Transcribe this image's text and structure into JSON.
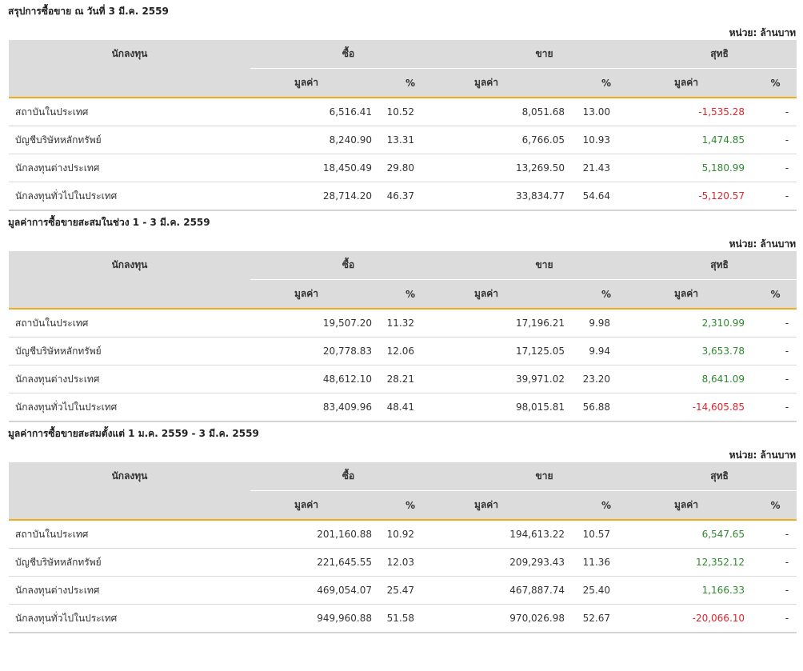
{
  "unit_label": "หน่วย: ล้านบาท",
  "headers": {
    "investor": "นักลงทุน",
    "buy": "ซื้อ",
    "sell": "ขาย",
    "net": "สุทธิ",
    "value": "มูลค่า",
    "percent": "%"
  },
  "sections": [
    {
      "title": "สรุปการซื้อขาย ณ วันที่ 3 มี.ค. 2559",
      "rows": [
        {
          "investor": "สถาบันในประเทศ",
          "buy_value": "6,516.41",
          "buy_pct": "10.52",
          "sell_value": "8,051.68",
          "sell_pct": "13.00",
          "net_value": "-1,535.28",
          "net_pct": "-",
          "net_sign": "neg"
        },
        {
          "investor": "บัญชีบริษัทหลักทรัพย์",
          "buy_value": "8,240.90",
          "buy_pct": "13.31",
          "sell_value": "6,766.05",
          "sell_pct": "10.93",
          "net_value": "1,474.85",
          "net_pct": "-",
          "net_sign": "pos"
        },
        {
          "investor": "นักลงทุนต่างประเทศ",
          "buy_value": "18,450.49",
          "buy_pct": "29.80",
          "sell_value": "13,269.50",
          "sell_pct": "21.43",
          "net_value": "5,180.99",
          "net_pct": "-",
          "net_sign": "pos"
        },
        {
          "investor": "นักลงทุนทั่วไปในประเทศ",
          "buy_value": "28,714.20",
          "buy_pct": "46.37",
          "sell_value": "33,834.77",
          "sell_pct": "54.64",
          "net_value": "-5,120.57",
          "net_pct": "-",
          "net_sign": "neg"
        }
      ]
    },
    {
      "title": "มูลค่าการซื้อขายสะสมในช่วง 1 - 3 มี.ค. 2559",
      "rows": [
        {
          "investor": "สถาบันในประเทศ",
          "buy_value": "19,507.20",
          "buy_pct": "11.32",
          "sell_value": "17,196.21",
          "sell_pct": "9.98",
          "net_value": "2,310.99",
          "net_pct": "-",
          "net_sign": "pos"
        },
        {
          "investor": "บัญชีบริษัทหลักทรัพย์",
          "buy_value": "20,778.83",
          "buy_pct": "12.06",
          "sell_value": "17,125.05",
          "sell_pct": "9.94",
          "net_value": "3,653.78",
          "net_pct": "-",
          "net_sign": "pos"
        },
        {
          "investor": "นักลงทุนต่างประเทศ",
          "buy_value": "48,612.10",
          "buy_pct": "28.21",
          "sell_value": "39,971.02",
          "sell_pct": "23.20",
          "net_value": "8,641.09",
          "net_pct": "-",
          "net_sign": "pos"
        },
        {
          "investor": "นักลงทุนทั่วไปในประเทศ",
          "buy_value": "83,409.96",
          "buy_pct": "48.41",
          "sell_value": "98,015.81",
          "sell_pct": "56.88",
          "net_value": "-14,605.85",
          "net_pct": "-",
          "net_sign": "neg"
        }
      ]
    },
    {
      "title": "มูลค่าการซื้อขายสะสมตั้งแต่ 1 ม.ค. 2559 - 3 มี.ค. 2559",
      "rows": [
        {
          "investor": "สถาบันในประเทศ",
          "buy_value": "201,160.88",
          "buy_pct": "10.92",
          "sell_value": "194,613.22",
          "sell_pct": "10.57",
          "net_value": "6,547.65",
          "net_pct": "-",
          "net_sign": "pos"
        },
        {
          "investor": "บัญชีบริษัทหลักทรัพย์",
          "buy_value": "221,645.55",
          "buy_pct": "12.03",
          "sell_value": "209,293.43",
          "sell_pct": "11.36",
          "net_value": "12,352.12",
          "net_pct": "-",
          "net_sign": "pos"
        },
        {
          "investor": "นักลงทุนต่างประเทศ",
          "buy_value": "469,054.07",
          "buy_pct": "25.47",
          "sell_value": "467,887.74",
          "sell_pct": "25.40",
          "net_value": "1,166.33",
          "net_pct": "-",
          "net_sign": "pos"
        },
        {
          "investor": "นักลงทุนทั่วไปในประเทศ",
          "buy_value": "949,960.88",
          "buy_pct": "51.58",
          "sell_value": "970,026.98",
          "sell_pct": "52.67",
          "net_value": "-20,066.10",
          "net_pct": "-",
          "net_sign": "neg"
        }
      ]
    }
  ]
}
